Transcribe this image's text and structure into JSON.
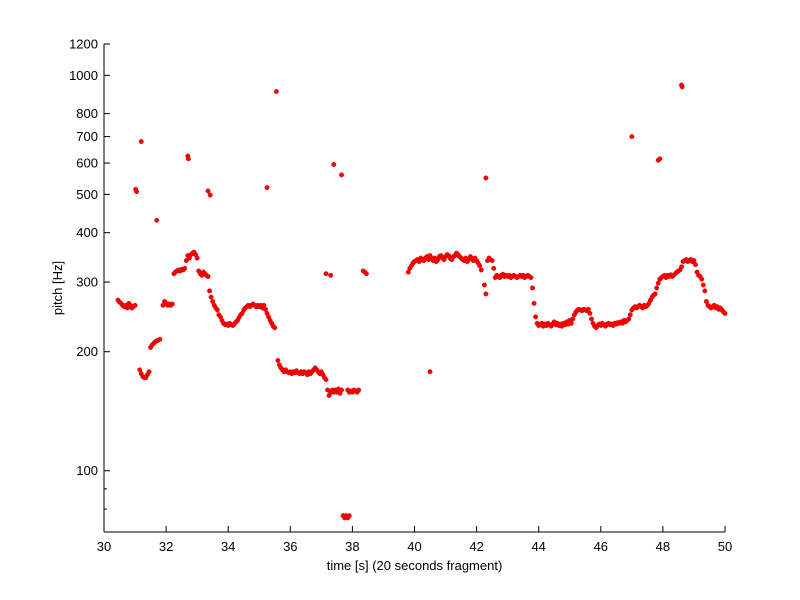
{
  "chart_data": {
    "type": "scatter",
    "xlabel": "time [s] (20 seconds fragment)",
    "ylabel": "pitch [Hz]",
    "xlim": [
      30,
      50
    ],
    "ylim": [
      70,
      1200
    ],
    "yscale": "log",
    "grid": false,
    "marker_color": "#ff0000",
    "marker_edge": "#cc0000",
    "x_ticks": [
      30,
      32,
      34,
      36,
      38,
      40,
      42,
      44,
      46,
      48,
      50
    ],
    "x_tick_labels": [
      "30",
      "32",
      "34",
      "36",
      "38",
      "40",
      "42",
      "44",
      "46",
      "48",
      "50"
    ],
    "y_major_ticks": [
      100,
      200,
      300,
      400,
      500,
      600,
      700,
      800,
      1000,
      1200
    ],
    "y_tick_labels": [
      "100",
      "200",
      "300",
      "400",
      "500",
      "600",
      "700",
      "800",
      "1000",
      "1200"
    ],
    "y_minor_ticks": [
      70,
      80,
      90
    ],
    "points": [
      [
        30.45,
        270
      ],
      [
        30.5,
        267
      ],
      [
        30.55,
        265
      ],
      [
        30.6,
        262
      ],
      [
        30.65,
        260
      ],
      [
        30.7,
        262
      ],
      [
        30.75,
        258
      ],
      [
        30.8,
        265
      ],
      [
        30.85,
        262
      ],
      [
        30.9,
        258
      ],
      [
        30.95,
        260
      ],
      [
        31.0,
        262
      ],
      [
        31.02,
        515
      ],
      [
        31.05,
        508
      ],
      [
        31.15,
        180
      ],
      [
        31.2,
        176
      ],
      [
        31.25,
        173
      ],
      [
        31.3,
        172
      ],
      [
        31.35,
        172
      ],
      [
        31.4,
        175
      ],
      [
        31.45,
        178
      ],
      [
        31.2,
        680
      ],
      [
        31.5,
        205
      ],
      [
        31.55,
        208
      ],
      [
        31.6,
        210
      ],
      [
        31.65,
        212
      ],
      [
        31.7,
        213
      ],
      [
        31.75,
        214
      ],
      [
        31.8,
        215
      ],
      [
        31.7,
        430
      ],
      [
        31.9,
        262
      ],
      [
        31.95,
        268
      ],
      [
        32.0,
        265
      ],
      [
        32.05,
        262
      ],
      [
        32.1,
        264
      ],
      [
        32.15,
        262
      ],
      [
        32.2,
        264
      ],
      [
        32.25,
        315
      ],
      [
        32.3,
        318
      ],
      [
        32.35,
        320
      ],
      [
        32.4,
        322
      ],
      [
        32.45,
        320
      ],
      [
        32.5,
        323
      ],
      [
        32.55,
        322
      ],
      [
        32.6,
        325
      ],
      [
        32.65,
        340
      ],
      [
        32.7,
        350
      ],
      [
        32.75,
        345
      ],
      [
        32.8,
        352
      ],
      [
        32.85,
        355
      ],
      [
        32.9,
        357
      ],
      [
        32.95,
        352
      ],
      [
        33.0,
        345
      ],
      [
        32.7,
        625
      ],
      [
        32.72,
        615
      ],
      [
        33.05,
        320
      ],
      [
        33.1,
        315
      ],
      [
        33.15,
        312
      ],
      [
        33.2,
        318
      ],
      [
        33.25,
        315
      ],
      [
        33.3,
        312
      ],
      [
        33.35,
        310
      ],
      [
        33.35,
        510
      ],
      [
        33.42,
        498
      ],
      [
        33.4,
        285
      ],
      [
        33.45,
        275
      ],
      [
        33.5,
        268
      ],
      [
        33.55,
        262
      ],
      [
        33.6,
        258
      ],
      [
        33.65,
        255
      ],
      [
        33.7,
        248
      ],
      [
        33.75,
        245
      ],
      [
        33.8,
        240
      ],
      [
        33.85,
        236
      ],
      [
        33.9,
        234
      ],
      [
        33.95,
        235
      ],
      [
        34.0,
        233
      ],
      [
        34.05,
        236
      ],
      [
        34.1,
        234
      ],
      [
        34.15,
        233
      ],
      [
        34.2,
        235
      ],
      [
        34.25,
        238
      ],
      [
        34.3,
        240
      ],
      [
        34.35,
        244
      ],
      [
        34.4,
        248
      ],
      [
        34.45,
        250
      ],
      [
        34.5,
        255
      ],
      [
        34.55,
        258
      ],
      [
        34.6,
        260
      ],
      [
        34.65,
        262
      ],
      [
        34.7,
        260
      ],
      [
        34.75,
        262
      ],
      [
        34.8,
        264
      ],
      [
        34.85,
        262
      ],
      [
        34.9,
        260
      ],
      [
        34.95,
        262
      ],
      [
        35.0,
        260
      ],
      [
        35.05,
        262
      ],
      [
        35.1,
        258
      ],
      [
        35.15,
        262
      ],
      [
        35.2,
        256
      ],
      [
        35.25,
        250
      ],
      [
        35.3,
        245
      ],
      [
        35.35,
        240
      ],
      [
        35.4,
        236
      ],
      [
        35.45,
        232
      ],
      [
        35.5,
        230
      ],
      [
        35.25,
        520
      ],
      [
        35.55,
        910
      ],
      [
        35.6,
        190
      ],
      [
        35.65,
        185
      ],
      [
        35.7,
        182
      ],
      [
        35.75,
        180
      ],
      [
        35.8,
        178
      ],
      [
        35.85,
        180
      ],
      [
        35.9,
        178
      ],
      [
        35.95,
        177
      ],
      [
        36.0,
        178
      ],
      [
        36.05,
        176
      ],
      [
        36.1,
        178
      ],
      [
        36.15,
        177
      ],
      [
        36.2,
        179
      ],
      [
        36.25,
        177
      ],
      [
        36.3,
        176
      ],
      [
        36.35,
        178
      ],
      [
        36.4,
        176
      ],
      [
        36.45,
        178
      ],
      [
        36.5,
        177
      ],
      [
        36.55,
        175
      ],
      [
        36.6,
        178
      ],
      [
        36.65,
        176
      ],
      [
        36.7,
        178
      ],
      [
        36.75,
        180
      ],
      [
        36.8,
        182
      ],
      [
        36.85,
        180
      ],
      [
        36.9,
        178
      ],
      [
        36.95,
        176
      ],
      [
        37.0,
        178
      ],
      [
        37.05,
        175
      ],
      [
        37.1,
        172
      ],
      [
        37.15,
        170
      ],
      [
        37.15,
        315
      ],
      [
        37.3,
        312
      ],
      [
        37.2,
        160
      ],
      [
        37.25,
        155
      ],
      [
        37.3,
        158
      ],
      [
        37.35,
        160
      ],
      [
        37.4,
        158
      ],
      [
        37.45,
        160
      ],
      [
        37.5,
        158
      ],
      [
        37.55,
        161
      ],
      [
        37.6,
        157
      ],
      [
        37.65,
        160
      ],
      [
        37.4,
        595
      ],
      [
        37.65,
        560
      ],
      [
        37.7,
        77
      ],
      [
        37.75,
        76
      ],
      [
        37.8,
        77
      ],
      [
        37.85,
        76
      ],
      [
        37.9,
        77
      ],
      [
        37.85,
        160
      ],
      [
        37.9,
        158
      ],
      [
        37.95,
        159
      ],
      [
        38.0,
        158
      ],
      [
        38.05,
        160
      ],
      [
        38.1,
        159
      ],
      [
        38.15,
        158
      ],
      [
        38.2,
        160
      ],
      [
        38.35,
        320
      ],
      [
        38.4,
        318
      ],
      [
        38.45,
        315
      ],
      [
        39.8,
        318
      ],
      [
        39.85,
        325
      ],
      [
        39.9,
        330
      ],
      [
        39.95,
        335
      ],
      [
        40.0,
        338
      ],
      [
        40.05,
        340
      ],
      [
        40.1,
        342
      ],
      [
        40.15,
        338
      ],
      [
        40.2,
        345
      ],
      [
        40.25,
        342
      ],
      [
        40.3,
        340
      ],
      [
        40.35,
        345
      ],
      [
        40.4,
        348
      ],
      [
        40.45,
        342
      ],
      [
        40.5,
        350
      ],
      [
        40.55,
        345
      ],
      [
        40.6,
        340
      ],
      [
        40.65,
        345
      ],
      [
        40.7,
        338
      ],
      [
        40.75,
        342
      ],
      [
        40.8,
        348
      ],
      [
        40.85,
        350
      ],
      [
        40.9,
        345
      ],
      [
        40.95,
        342
      ],
      [
        41.0,
        348
      ],
      [
        41.05,
        352
      ],
      [
        41.1,
        350
      ],
      [
        41.15,
        345
      ],
      [
        41.2,
        342
      ],
      [
        41.25,
        348
      ],
      [
        41.3,
        350
      ],
      [
        41.35,
        355
      ],
      [
        41.4,
        352
      ],
      [
        41.45,
        348
      ],
      [
        41.5,
        345
      ],
      [
        41.55,
        342
      ],
      [
        41.6,
        340
      ],
      [
        41.65,
        345
      ],
      [
        41.7,
        338
      ],
      [
        41.75,
        342
      ],
      [
        41.8,
        348
      ],
      [
        41.85,
        345
      ],
      [
        41.9,
        340
      ],
      [
        41.95,
        345
      ],
      [
        42.0,
        340
      ],
      [
        42.05,
        335
      ],
      [
        42.1,
        330
      ],
      [
        42.15,
        322
      ],
      [
        40.5,
        178
      ],
      [
        42.25,
        295
      ],
      [
        42.3,
        280
      ],
      [
        42.3,
        550
      ],
      [
        42.35,
        340
      ],
      [
        42.4,
        345
      ],
      [
        42.45,
        342
      ],
      [
        42.5,
        340
      ],
      [
        42.55,
        325
      ],
      [
        42.6,
        308
      ],
      [
        42.65,
        312
      ],
      [
        42.7,
        310
      ],
      [
        42.75,
        308
      ],
      [
        42.8,
        312
      ],
      [
        42.85,
        314
      ],
      [
        42.9,
        310
      ],
      [
        42.95,
        312
      ],
      [
        43.0,
        310
      ],
      [
        43.05,
        312
      ],
      [
        43.1,
        308
      ],
      [
        43.15,
        310
      ],
      [
        43.2,
        312
      ],
      [
        43.25,
        310
      ],
      [
        43.3,
        308
      ],
      [
        43.35,
        310
      ],
      [
        43.4,
        312
      ],
      [
        43.45,
        310
      ],
      [
        43.5,
        312
      ],
      [
        43.55,
        308
      ],
      [
        43.6,
        310
      ],
      [
        43.65,
        312
      ],
      [
        43.7,
        310
      ],
      [
        43.75,
        308
      ],
      [
        43.8,
        290
      ],
      [
        43.85,
        265
      ],
      [
        43.9,
        245
      ],
      [
        43.95,
        236
      ],
      [
        44.0,
        233
      ],
      [
        44.05,
        234
      ],
      [
        44.1,
        236
      ],
      [
        44.15,
        232
      ],
      [
        44.2,
        235
      ],
      [
        44.25,
        233
      ],
      [
        44.3,
        236
      ],
      [
        44.35,
        234
      ],
      [
        44.4,
        232
      ],
      [
        44.45,
        235
      ],
      [
        44.5,
        238
      ],
      [
        44.55,
        234
      ],
      [
        44.6,
        236
      ],
      [
        44.65,
        233
      ],
      [
        44.7,
        235
      ],
      [
        44.75,
        232
      ],
      [
        44.8,
        236
      ],
      [
        44.85,
        234
      ],
      [
        44.9,
        238
      ],
      [
        44.95,
        235
      ],
      [
        45.0,
        240
      ],
      [
        45.05,
        236
      ],
      [
        45.1,
        242
      ],
      [
        45.15,
        248
      ],
      [
        45.2,
        252
      ],
      [
        45.25,
        255
      ],
      [
        45.3,
        256
      ],
      [
        45.35,
        255
      ],
      [
        45.4,
        254
      ],
      [
        45.45,
        256
      ],
      [
        45.5,
        255
      ],
      [
        45.55,
        254
      ],
      [
        45.6,
        256
      ],
      [
        45.65,
        250
      ],
      [
        45.7,
        242
      ],
      [
        45.75,
        236
      ],
      [
        45.8,
        232
      ],
      [
        45.85,
        230
      ],
      [
        45.9,
        233
      ],
      [
        45.95,
        235
      ],
      [
        46.0,
        233
      ],
      [
        46.05,
        236
      ],
      [
        46.1,
        234
      ],
      [
        46.15,
        232
      ],
      [
        46.2,
        235
      ],
      [
        46.25,
        236
      ],
      [
        46.3,
        234
      ],
      [
        46.35,
        235
      ],
      [
        46.4,
        233
      ],
      [
        46.45,
        236
      ],
      [
        46.5,
        235
      ],
      [
        46.55,
        237
      ],
      [
        46.6,
        236
      ],
      [
        46.65,
        238
      ],
      [
        46.7,
        236
      ],
      [
        46.75,
        240
      ],
      [
        46.8,
        238
      ],
      [
        46.85,
        240
      ],
      [
        46.9,
        242
      ],
      [
        46.95,
        248
      ],
      [
        47.0,
        255
      ],
      [
        47.05,
        258
      ],
      [
        47.1,
        260
      ],
      [
        47.15,
        258
      ],
      [
        47.2,
        260
      ],
      [
        47.25,
        262
      ],
      [
        47.3,
        260
      ],
      [
        47.35,
        258
      ],
      [
        47.4,
        262
      ],
      [
        47.45,
        260
      ],
      [
        47.5,
        262
      ],
      [
        47.55,
        265
      ],
      [
        47.6,
        270
      ],
      [
        47.65,
        275
      ],
      [
        47.7,
        278
      ],
      [
        47.0,
        700
      ],
      [
        47.75,
        280
      ],
      [
        47.8,
        290
      ],
      [
        47.85,
        298
      ],
      [
        47.9,
        305
      ],
      [
        47.95,
        308
      ],
      [
        48.0,
        310
      ],
      [
        48.05,
        312
      ],
      [
        48.1,
        308
      ],
      [
        48.15,
        312
      ],
      [
        48.2,
        310
      ],
      [
        48.25,
        313
      ],
      [
        48.3,
        310
      ],
      [
        48.35,
        312
      ],
      [
        48.4,
        315
      ],
      [
        48.45,
        318
      ],
      [
        48.5,
        320
      ],
      [
        48.55,
        322
      ],
      [
        48.6,
        328
      ],
      [
        47.85,
        610
      ],
      [
        47.9,
        615
      ],
      [
        48.65,
        338
      ],
      [
        48.7,
        340
      ],
      [
        48.75,
        342
      ],
      [
        48.8,
        338
      ],
      [
        48.85,
        340
      ],
      [
        48.9,
        342
      ],
      [
        48.95,
        338
      ],
      [
        49.0,
        340
      ],
      [
        49.05,
        332
      ],
      [
        48.6,
        945
      ],
      [
        48.62,
        935
      ],
      [
        49.1,
        318
      ],
      [
        49.15,
        312
      ],
      [
        49.2,
        310
      ],
      [
        49.25,
        305
      ],
      [
        49.3,
        295
      ],
      [
        49.35,
        285
      ],
      [
        49.4,
        268
      ],
      [
        49.45,
        262
      ],
      [
        49.5,
        260
      ],
      [
        49.55,
        258
      ],
      [
        49.6,
        260
      ],
      [
        49.65,
        262
      ],
      [
        49.7,
        258
      ],
      [
        49.75,
        260
      ],
      [
        49.8,
        256
      ],
      [
        49.85,
        258
      ],
      [
        49.9,
        255
      ],
      [
        49.95,
        252
      ],
      [
        50.0,
        250
      ]
    ]
  }
}
